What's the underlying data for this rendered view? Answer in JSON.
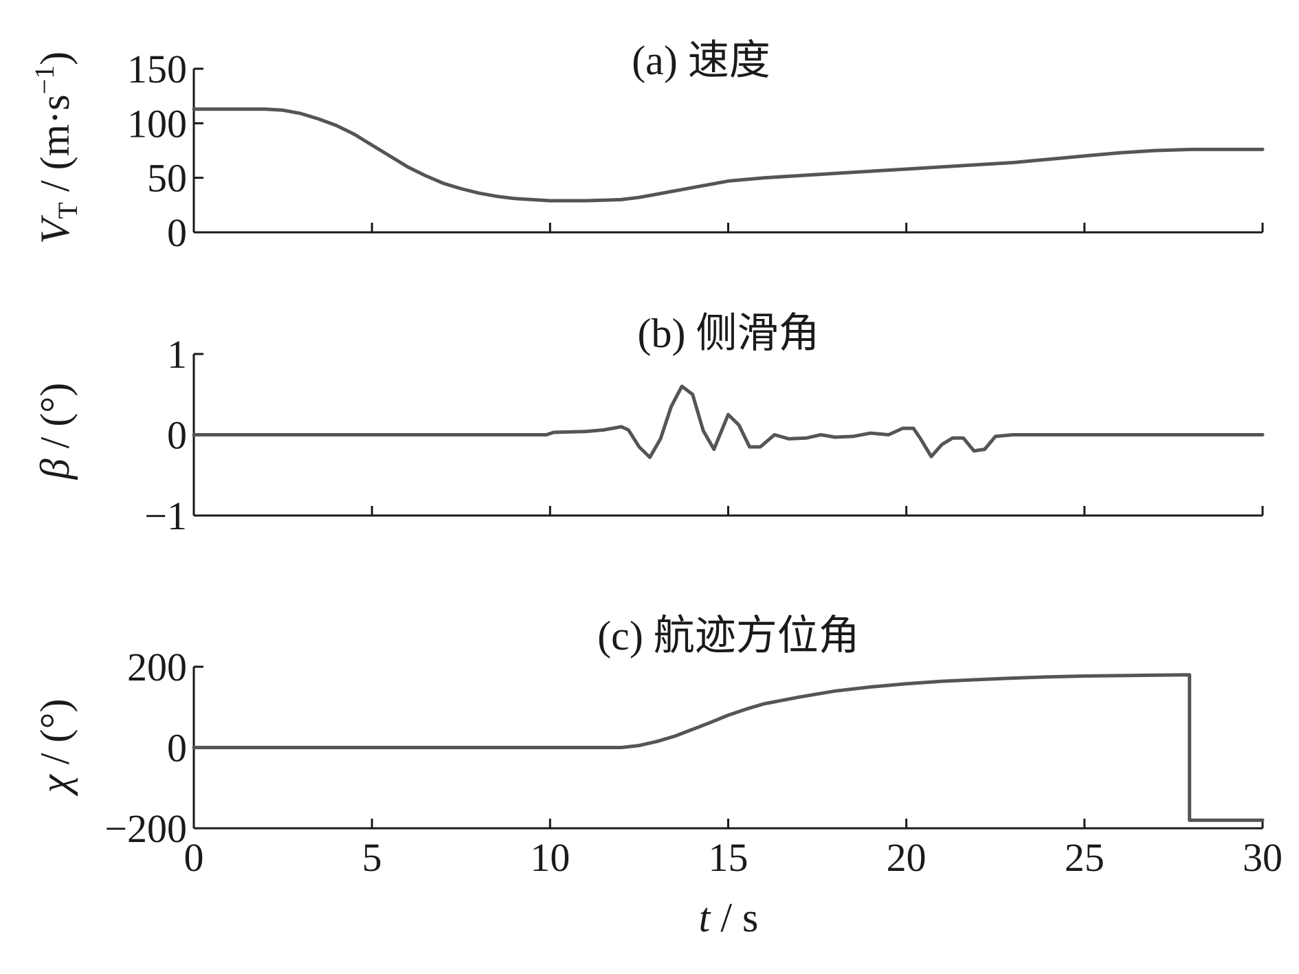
{
  "colors": {
    "series": "#555555",
    "axis": "#1a1a1a"
  },
  "chart_data": [
    {
      "type": "line",
      "title": "(a) 速度",
      "ylabel": {
        "main": "V",
        "sub": "T",
        "unit": " / (m·s",
        "sup": "−1",
        "close": ")"
      },
      "xlim": [
        0,
        30
      ],
      "ylim": [
        0,
        150
      ],
      "yticks": [
        0,
        50,
        100,
        150
      ],
      "yticklabels": [
        "0",
        "50",
        "100",
        "150"
      ],
      "xticks": [
        0,
        5,
        10,
        15,
        20,
        25,
        30
      ],
      "grid": false,
      "series": [
        {
          "x": [
            0,
            2,
            2.5,
            3,
            3.5,
            4,
            4.5,
            5,
            5.5,
            6,
            6.5,
            7,
            7.5,
            8,
            8.5,
            9,
            9.5,
            10,
            11,
            12,
            12.5,
            13,
            13.5,
            14,
            14.5,
            15,
            16,
            17,
            18,
            19,
            20,
            21,
            22,
            23,
            24,
            25,
            26,
            27,
            28,
            29,
            30
          ],
          "y": [
            113,
            113,
            112,
            109,
            104,
            98,
            90,
            80,
            70,
            60,
            52,
            45,
            40,
            36,
            33,
            31,
            30,
            29,
            29,
            30,
            32,
            35,
            38,
            41,
            44,
            47,
            50,
            52,
            54,
            56,
            58,
            60,
            62,
            64,
            67,
            70,
            73,
            75,
            76,
            76,
            76
          ]
        }
      ]
    },
    {
      "type": "line",
      "title": "(b) 侧滑角",
      "ylabel": {
        "main": "β",
        "unit": " / (°)"
      },
      "xlim": [
        0,
        30
      ],
      "ylim": [
        -1,
        1
      ],
      "yticks": [
        -1,
        0,
        1
      ],
      "yticklabels": [
        "−1",
        "0",
        "1"
      ],
      "xticks": [
        0,
        5,
        10,
        15,
        20,
        25,
        30
      ],
      "grid": false,
      "series": [
        {
          "x": [
            0,
            9.9,
            10.1,
            11,
            11.5,
            12,
            12.2,
            12.5,
            12.8,
            13.1,
            13.4,
            13.7,
            14,
            14.3,
            14.6,
            15,
            15.3,
            15.6,
            15.9,
            16.3,
            16.7,
            17.2,
            17.6,
            18,
            18.5,
            19,
            19.5,
            19.9,
            20.2,
            20.4,
            20.7,
            21,
            21.3,
            21.6,
            21.9,
            22.2,
            22.5,
            23,
            24,
            30
          ],
          "y": [
            0,
            0,
            0.03,
            0.04,
            0.06,
            0.1,
            0.06,
            -0.15,
            -0.28,
            -0.05,
            0.35,
            0.6,
            0.5,
            0.05,
            -0.18,
            0.25,
            0.12,
            -0.15,
            -0.15,
            0.0,
            -0.05,
            -0.04,
            0.0,
            -0.03,
            -0.02,
            0.02,
            0.0,
            0.08,
            0.08,
            -0.05,
            -0.27,
            -0.12,
            -0.04,
            -0.04,
            -0.2,
            -0.18,
            -0.02,
            0.0,
            0.0,
            0.0
          ]
        }
      ]
    },
    {
      "type": "line",
      "title": "(c) 航迹方位角",
      "ylabel": {
        "main": "χ",
        "unit": " / (°)"
      },
      "xlabel": {
        "main": "t",
        "unit": " / s"
      },
      "xlim": [
        0,
        30
      ],
      "ylim": [
        -200,
        200
      ],
      "yticks": [
        -200,
        0,
        200
      ],
      "yticklabels": [
        "−200",
        "0",
        "200"
      ],
      "xticks": [
        0,
        5,
        10,
        15,
        20,
        25,
        30
      ],
      "xticklabels": [
        "0",
        "5",
        "10",
        "15",
        "20",
        "25",
        "30"
      ],
      "grid": false,
      "series": [
        {
          "x": [
            0,
            12,
            12.5,
            13,
            13.5,
            14,
            14.5,
            15,
            15.5,
            16,
            17,
            18,
            19,
            20,
            21,
            22,
            23,
            24,
            25,
            26,
            27,
            27.95,
            27.95,
            30
          ],
          "y": [
            0,
            0,
            5,
            15,
            28,
            45,
            62,
            80,
            95,
            108,
            125,
            140,
            150,
            158,
            164,
            168,
            172,
            175,
            177,
            178,
            179,
            180,
            -180,
            -180
          ]
        }
      ]
    }
  ]
}
